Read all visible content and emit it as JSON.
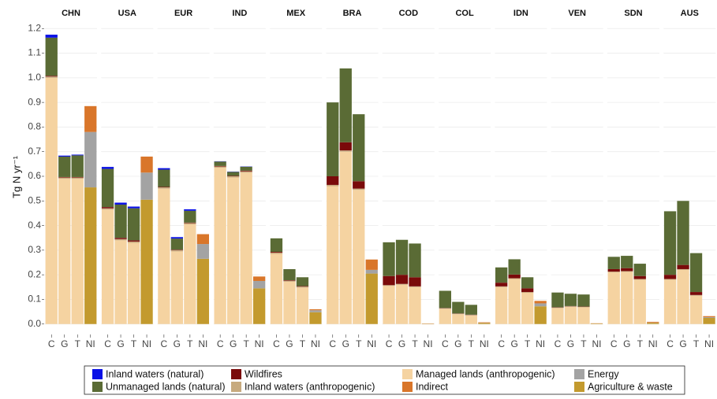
{
  "chart_data": {
    "type": "bar",
    "stacked": true,
    "y_label": "Tg N yr⁻¹",
    "panels": [
      "CHN",
      "USA",
      "EUR",
      "IND",
      "MEX",
      "BRA",
      "COD",
      "COL",
      "IDN",
      "VEN",
      "SDN",
      "AUS"
    ],
    "categories": [
      "C",
      "G",
      "T",
      "NI"
    ],
    "ylim": [
      -0.02,
      1.22
    ],
    "yticks": [
      {
        "value": 0,
        "label": "0.0"
      },
      0.1,
      0.2,
      0.3,
      0.4,
      0.5,
      0.6,
      0.7,
      0.8,
      0.9,
      {
        "value": 1,
        "label": "1.0"
      },
      1.1,
      1.2
    ],
    "grid": true,
    "legend": "bottom",
    "series": [
      {
        "name": "Inland waters (natural)",
        "color": "#0a10e6",
        "values": [
          [
            0.012,
            0.004,
            0.003,
            0
          ],
          [
            0.008,
            0.008,
            0.007,
            0
          ],
          [
            0.006,
            0.006,
            0.006,
            0
          ],
          [
            0.001,
            0.001,
            0.001,
            0
          ],
          [
            0,
            0,
            0,
            0
          ],
          [
            0,
            0,
            0,
            0
          ],
          [
            0,
            0,
            0,
            0
          ],
          [
            0,
            0,
            0,
            0
          ],
          [
            0,
            0,
            0,
            0
          ],
          [
            0,
            0,
            0,
            0
          ],
          [
            0,
            0,
            0,
            0
          ],
          [
            0,
            0,
            0,
            0
          ]
        ]
      },
      {
        "name": "Unmanaged lands (natural)",
        "color": "#5a6b35",
        "values": [
          [
            0.155,
            0.083,
            0.088,
            0
          ],
          [
            0.155,
            0.135,
            0.13,
            0
          ],
          [
            0.07,
            0.045,
            0.048,
            0
          ],
          [
            0.018,
            0.016,
            0.016,
            0
          ],
          [
            0.055,
            0.045,
            0.036,
            0
          ],
          [
            0.3,
            0.3,
            0.272,
            0
          ],
          [
            0.137,
            0.142,
            0.137,
            0
          ],
          [
            0.07,
            0.047,
            0.04,
            0
          ],
          [
            0.062,
            0.062,
            0.045,
            0
          ],
          [
            0.06,
            0.05,
            0.049,
            0
          ],
          [
            0.05,
            0.05,
            0.05,
            0
          ],
          [
            0.258,
            0.26,
            0.158,
            0
          ]
        ]
      },
      {
        "name": "Wildfires",
        "color": "#7a0a0a",
        "values": [
          [
            0.003,
            0.002,
            0.002,
            0
          ],
          [
            0.005,
            0.005,
            0.005,
            0
          ],
          [
            0.002,
            0.002,
            0.002,
            0
          ],
          [
            0.002,
            0.002,
            0.003,
            0
          ],
          [
            0.003,
            0.002,
            0.002,
            0
          ],
          [
            0.035,
            0.033,
            0.03,
            0
          ],
          [
            0.037,
            0.037,
            0.037,
            0
          ],
          [
            0.001,
            0.001,
            0.001,
            0
          ],
          [
            0.015,
            0.015,
            0.015,
            0
          ],
          [
            0.001,
            0.001,
            0.001,
            0
          ],
          [
            0.01,
            0.012,
            0.012,
            0
          ],
          [
            0.017,
            0.017,
            0.012,
            0
          ]
        ]
      },
      {
        "name": "Inland waters (anthropogenic)",
        "color": "#c7aa7e",
        "values": [
          [
            0.005,
            0.005,
            0.005,
            0
          ],
          [
            0.005,
            0.005,
            0.005,
            0
          ],
          [
            0.005,
            0.005,
            0.005,
            0
          ],
          [
            0.005,
            0.005,
            0.005,
            0
          ],
          [
            0.005,
            0.004,
            0.004,
            0
          ],
          [
            0.005,
            0.005,
            0.005,
            0
          ],
          [
            0.003,
            0.003,
            0.003,
            0
          ],
          [
            0.002,
            0.002,
            0.002,
            0
          ],
          [
            0.003,
            0.003,
            0.003,
            0
          ],
          [
            0.002,
            0.002,
            0.002,
            0
          ],
          [
            0.003,
            0.003,
            0.003,
            0
          ],
          [
            0.003,
            0.003,
            0.003,
            0
          ]
        ]
      },
      {
        "name": "Managed lands (anthropogenic)",
        "color": "#f5d3a1",
        "values": [
          [
            1.0,
            0.59,
            0.59,
            0
          ],
          [
            0.465,
            0.34,
            0.33,
            0
          ],
          [
            0.55,
            0.295,
            0.405,
            0
          ],
          [
            0.635,
            0.595,
            0.615,
            0
          ],
          [
            0.285,
            0.172,
            0.148,
            0
          ],
          [
            0.56,
            0.7,
            0.545,
            0
          ],
          [
            0.155,
            0.16,
            0.15,
            0
          ],
          [
            0.062,
            0.04,
            0.035,
            0
          ],
          [
            0.15,
            0.183,
            0.127,
            0
          ],
          [
            0.065,
            0.07,
            0.068,
            0
          ],
          [
            0.21,
            0.212,
            0.18,
            0
          ],
          [
            0.18,
            0.22,
            0.115,
            0
          ]
        ]
      },
      {
        "name": "Indirect",
        "color": "#d9762a",
        "values": [
          [
            0,
            0,
            0,
            0.105
          ],
          [
            0,
            0,
            0,
            0.065
          ],
          [
            0,
            0,
            0,
            0.04
          ],
          [
            0,
            0,
            0,
            0.018
          ],
          [
            0,
            0,
            0,
            0.004
          ],
          [
            0,
            0,
            0,
            0.042
          ],
          [
            0,
            0,
            0,
            0.001
          ],
          [
            0,
            0,
            0,
            0.002
          ],
          [
            0,
            0,
            0,
            0.01
          ],
          [
            0,
            0,
            0,
            0.001
          ],
          [
            0,
            0,
            0,
            0.003
          ],
          [
            0,
            0,
            0,
            0.004
          ]
        ]
      },
      {
        "name": "Energy",
        "color": "#a3a3a3",
        "values": [
          [
            0,
            0,
            0,
            0.225
          ],
          [
            0,
            0,
            0,
            0.11
          ],
          [
            0,
            0,
            0,
            0.06
          ],
          [
            0,
            0,
            0,
            0.03
          ],
          [
            0,
            0,
            0,
            0.008
          ],
          [
            0,
            0,
            0,
            0.015
          ],
          [
            0,
            0,
            0,
            0
          ],
          [
            0,
            0,
            0,
            0.001
          ],
          [
            0,
            0,
            0,
            0.012
          ],
          [
            0,
            0,
            0,
            0
          ],
          [
            0,
            0,
            0,
            0.001
          ],
          [
            0,
            0,
            0,
            0.003
          ]
        ]
      },
      {
        "name": "Agriculture & waste",
        "color": "#c39a2e",
        "values": [
          [
            0,
            0,
            0,
            0.555
          ],
          [
            0,
            0,
            0,
            0.505
          ],
          [
            0,
            0,
            0,
            0.265
          ],
          [
            0,
            0,
            0,
            0.145
          ],
          [
            0,
            0,
            0,
            0.048
          ],
          [
            0,
            0,
            0,
            0.205
          ],
          [
            0,
            0,
            0,
            0.001
          ],
          [
            0,
            0,
            0,
            0.004
          ],
          [
            0,
            0,
            0,
            0.072
          ],
          [
            0,
            0,
            0,
            0.002
          ],
          [
            0,
            0,
            0,
            0.005
          ],
          [
            0,
            0,
            0,
            0.025
          ]
        ]
      }
    ]
  }
}
